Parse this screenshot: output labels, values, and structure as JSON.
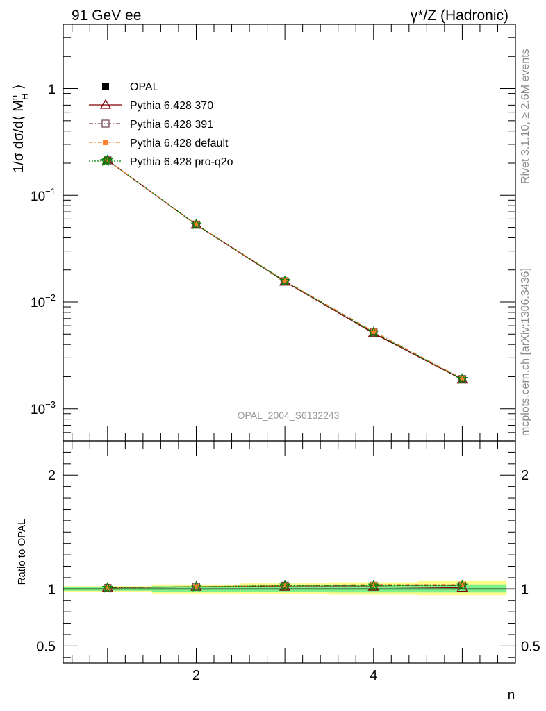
{
  "header": {
    "left_label": "91 GeV ee",
    "right_label": "γ*/Z (Hadronic)"
  },
  "side_labels": {
    "rivet": "Rivet 3.1.10, ≥ 2.6M events",
    "mcplots": "mcplots.cern.ch [arXiv:1306.3436]"
  },
  "watermark": "OPAL_2004_S6132243",
  "colors": {
    "opal": "#000000",
    "p370": "#800000",
    "p391": "#7a4a5a",
    "pdefault": "#ff8030",
    "pq2o": "#008000",
    "band_green": "#7ff08a",
    "band_yellow": "#fbfb8a"
  },
  "chart_data": [
    {
      "type": "scatter",
      "panel": "main",
      "ylabel": "1/σ dσ/d⟨ M_H^n ⟩",
      "yscale": "log",
      "ylim": [
        0.0005,
        4
      ],
      "xlim": [
        0.5,
        5.6
      ],
      "ytick_labels": [
        "10^-3",
        "10^-2",
        "10^-1",
        "1"
      ],
      "legend_position": "top-left",
      "x": [
        1,
        2,
        3,
        4,
        5
      ],
      "series": [
        {
          "name": "OPAL",
          "values": [
            0.213,
            0.0535,
            0.0158,
            0.0052,
            0.00188
          ],
          "marker": "filled-square"
        },
        {
          "name": "Pythia 6.428 370",
          "values": [
            0.213,
            0.053,
            0.0155,
            0.0051,
            0.00188
          ],
          "marker": "open-triangle"
        },
        {
          "name": "Pythia 6.428 391",
          "values": [
            0.213,
            0.0532,
            0.0156,
            0.0052,
            0.0019
          ],
          "marker": "open-square"
        },
        {
          "name": "Pythia 6.428 default",
          "values": [
            0.213,
            0.0533,
            0.0158,
            0.0053,
            0.00192
          ],
          "marker": "filled-square"
        },
        {
          "name": "Pythia 6.428 pro-q2o",
          "values": [
            0.213,
            0.0533,
            0.0157,
            0.0052,
            0.0019
          ],
          "marker": "star"
        }
      ]
    },
    {
      "type": "scatter",
      "panel": "ratio",
      "ylabel": "Ratio to OPAL",
      "xlabel": "n",
      "ylim": [
        0.35,
        2.3
      ],
      "xlim": [
        0.5,
        5.6
      ],
      "ytick_labels": [
        "0.5",
        "1",
        "2"
      ],
      "xtick_labels": [
        "2",
        "4"
      ],
      "x": [
        1,
        2,
        3,
        4,
        5
      ],
      "bins": [
        [
          0.5,
          1.5
        ],
        [
          1.5,
          2.5
        ],
        [
          2.5,
          3.5
        ],
        [
          3.5,
          4.5
        ],
        [
          4.5,
          5.5
        ]
      ],
      "band_green": [
        [
          0.985,
          1.015
        ],
        [
          0.975,
          1.025
        ],
        [
          0.975,
          1.03
        ],
        [
          0.97,
          1.035
        ],
        [
          0.97,
          1.04
        ]
      ],
      "band_yellow": [
        [
          0.975,
          1.025
        ],
        [
          0.96,
          1.04
        ],
        [
          0.955,
          1.05
        ],
        [
          0.95,
          1.06
        ],
        [
          0.945,
          1.07
        ]
      ],
      "series": [
        {
          "name": "Pythia 6.428 370",
          "values": [
            1.01,
            1.02,
            1.02,
            1.02,
            1.01
          ]
        },
        {
          "name": "Pythia 6.428 391",
          "values": [
            1.01,
            1.02,
            1.03,
            1.03,
            1.03
          ]
        },
        {
          "name": "Pythia 6.428 default",
          "values": [
            1.01,
            1.02,
            1.03,
            1.04,
            1.04
          ]
        },
        {
          "name": "Pythia 6.428 pro-q2o",
          "values": [
            1.01,
            1.02,
            1.03,
            1.03,
            1.03
          ]
        }
      ]
    }
  ]
}
